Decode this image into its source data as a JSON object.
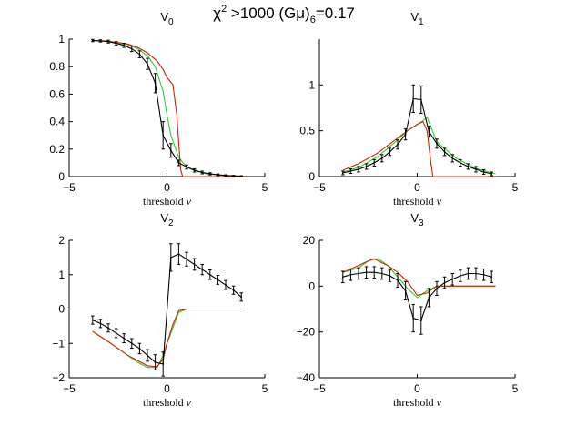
{
  "figure": {
    "title_chi": "χ",
    "title_chi_sup": "2",
    "title_mid": " >1000  (Gμ)",
    "title_mu_sub": "6",
    "title_end": "=0.17"
  },
  "colors": {
    "series_black": "#000000",
    "series_red": "#cc2200",
    "series_green": "#33cc33",
    "axis": "#000000",
    "background": "#ffffff"
  },
  "chart_data": [
    {
      "type": "line",
      "title_letter": "V",
      "title_sub": "0",
      "xlabel_text": "threshold ",
      "xlabel_symbol": "ν",
      "xlim": [
        -5,
        5
      ],
      "xticks": [
        -5,
        0,
        5
      ],
      "xtick_labels": [
        "−5",
        "0",
        "5"
      ],
      "ylim": [
        0,
        1
      ],
      "yticks": [
        0,
        0.2,
        0.4,
        0.6,
        0.8,
        1
      ],
      "ytick_labels": [
        "0",
        "0.2",
        "0.4",
        "0.6",
        "0.8",
        "1"
      ],
      "series": [
        {
          "name": "green",
          "color": "#33cc33",
          "x": [
            -3.8,
            -3,
            -2,
            -1.5,
            -1,
            -0.6,
            -0.2,
            0,
            0.2,
            0.6,
            1,
            2,
            3,
            4
          ],
          "y": [
            0.99,
            0.985,
            0.96,
            0.93,
            0.88,
            0.8,
            0.62,
            0.45,
            0.3,
            0.14,
            0.07,
            0.02,
            0.008,
            0.002
          ]
        },
        {
          "name": "red",
          "color": "#cc2200",
          "x": [
            -3.8,
            -3,
            -2,
            -1.5,
            -1,
            -0.5,
            -0.2,
            0,
            0.3,
            0.5,
            0.7,
            0.8,
            1,
            4
          ],
          "y": [
            0.99,
            0.985,
            0.965,
            0.94,
            0.9,
            0.84,
            0.78,
            0.72,
            0.67,
            0.45,
            0.05,
            0,
            0,
            0
          ]
        },
        {
          "name": "black",
          "color": "#000000",
          "x": [
            -3.8,
            -3.4,
            -3,
            -2.6,
            -2.2,
            -1.8,
            -1.4,
            -1,
            -0.6,
            -0.2,
            0.2,
            0.6,
            1,
            1.4,
            1.8,
            2.2,
            2.6,
            3,
            3.4,
            3.8
          ],
          "y": [
            0.99,
            0.987,
            0.982,
            0.97,
            0.955,
            0.93,
            0.89,
            0.82,
            0.68,
            0.3,
            0.19,
            0.1,
            0.07,
            0.045,
            0.03,
            0.02,
            0.013,
            0.008,
            0.005,
            0.003
          ],
          "err": [
            0.008,
            0.008,
            0.01,
            0.012,
            0.015,
            0.02,
            0.025,
            0.04,
            0.07,
            0.1,
            0.05,
            0.02,
            0.015,
            0.012,
            0.01,
            0.008,
            0.006,
            0.005,
            0.004,
            0.003
          ]
        }
      ]
    },
    {
      "type": "line",
      "title_letter": "V",
      "title_sub": "1",
      "xlabel_text": "threshold ",
      "xlabel_symbol": "ν",
      "xlim": [
        -5,
        5
      ],
      "xticks": [
        -5,
        0,
        5
      ],
      "xtick_labels": [
        "−5",
        "0",
        "5"
      ],
      "ylim": [
        0,
        1.5
      ],
      "yticks": [
        0,
        0.5,
        1
      ],
      "ytick_labels": [
        "0",
        "0.5",
        "1"
      ],
      "series": [
        {
          "name": "green",
          "color": "#33cc33",
          "x": [
            -3.8,
            -3,
            -2,
            -1,
            -0.5,
            0,
            0.3,
            0.5,
            1,
            2,
            3,
            4
          ],
          "y": [
            0.05,
            0.1,
            0.22,
            0.4,
            0.5,
            0.57,
            0.61,
            0.65,
            0.38,
            0.2,
            0.09,
            0.03
          ]
        },
        {
          "name": "red",
          "color": "#cc2200",
          "x": [
            -3.8,
            -3,
            -2,
            -1,
            -0.5,
            0,
            0.3,
            0.5,
            0.7,
            0.8,
            1,
            4
          ],
          "y": [
            0.07,
            0.14,
            0.26,
            0.42,
            0.5,
            0.57,
            0.6,
            0.5,
            0.15,
            0,
            0,
            0
          ]
        },
        {
          "name": "black",
          "color": "#000000",
          "x": [
            -3.8,
            -3.4,
            -3,
            -2.6,
            -2.2,
            -1.8,
            -1.4,
            -1,
            -0.6,
            -0.2,
            0.2,
            0.6,
            1,
            1.4,
            1.8,
            2.2,
            2.6,
            3,
            3.4,
            3.8
          ],
          "y": [
            0.04,
            0.06,
            0.08,
            0.11,
            0.15,
            0.2,
            0.27,
            0.35,
            0.46,
            0.85,
            0.84,
            0.49,
            0.36,
            0.27,
            0.2,
            0.15,
            0.11,
            0.08,
            0.05,
            0.03
          ],
          "err": [
            0.02,
            0.025,
            0.03,
            0.03,
            0.035,
            0.04,
            0.04,
            0.05,
            0.06,
            0.15,
            0.15,
            0.06,
            0.05,
            0.04,
            0.04,
            0.035,
            0.03,
            0.03,
            0.025,
            0.02
          ]
        }
      ]
    },
    {
      "type": "line",
      "title_letter": "V",
      "title_sub": "2",
      "xlabel_text": "threshold ",
      "xlabel_symbol": "ν",
      "xlim": [
        -5,
        5
      ],
      "xticks": [
        -5,
        0,
        5
      ],
      "xtick_labels": [
        "−5",
        "0",
        "5"
      ],
      "ylim": [
        -2,
        2
      ],
      "yticks": [
        -2,
        -1,
        0,
        1,
        2
      ],
      "ytick_labels": [
        "−2",
        "−1",
        "0",
        "1",
        "2"
      ],
      "series": [
        {
          "name": "green",
          "color": "#33cc33",
          "x": [
            -3.8,
            -3,
            -2,
            -1.5,
            -1,
            -0.5,
            -0.2,
            0,
            0.3,
            0.6,
            1,
            2,
            4
          ],
          "y": [
            -0.65,
            -0.95,
            -1.35,
            -1.55,
            -1.7,
            -1.7,
            -1.35,
            -1.0,
            -0.55,
            -0.1,
            0,
            0,
            0
          ]
        },
        {
          "name": "red",
          "color": "#cc2200",
          "x": [
            -3.8,
            -3,
            -2,
            -1.5,
            -1,
            -0.5,
            -0.2,
            0,
            0.3,
            0.6,
            1,
            2,
            4
          ],
          "y": [
            -0.65,
            -0.95,
            -1.35,
            -1.5,
            -1.65,
            -1.68,
            -1.45,
            -1.0,
            -0.45,
            -0.05,
            0,
            0,
            0
          ]
        },
        {
          "name": "black",
          "color": "#000000",
          "x": [
            -3.8,
            -3.4,
            -3,
            -2.6,
            -2.2,
            -1.8,
            -1.4,
            -1,
            -0.6,
            -0.2,
            0.2,
            0.6,
            1,
            1.4,
            1.8,
            2.2,
            2.6,
            3,
            3.4,
            3.8
          ],
          "y": [
            -0.32,
            -0.42,
            -0.55,
            -0.7,
            -0.85,
            -1.0,
            -1.15,
            -1.35,
            -1.55,
            -1.6,
            1.5,
            1.6,
            1.45,
            1.3,
            1.15,
            1.0,
            0.85,
            0.7,
            0.55,
            0.35
          ],
          "err": [
            0.12,
            0.12,
            0.12,
            0.13,
            0.13,
            0.14,
            0.15,
            0.17,
            0.22,
            0.35,
            0.4,
            0.3,
            0.2,
            0.17,
            0.15,
            0.14,
            0.13,
            0.13,
            0.12,
            0.12
          ]
        }
      ]
    },
    {
      "type": "line",
      "title_letter": "V",
      "title_sub": "3",
      "xlabel_text": "threshold ",
      "xlabel_symbol": "ν",
      "xlim": [
        -5,
        5
      ],
      "xticks": [
        -5,
        0,
        5
      ],
      "xtick_labels": [
        "−5",
        "0",
        "5"
      ],
      "ylim": [
        -40,
        20
      ],
      "yticks": [
        -40,
        -20,
        0,
        20
      ],
      "ytick_labels": [
        "−40",
        "−20",
        "0",
        "20"
      ],
      "series": [
        {
          "name": "green",
          "color": "#33cc33",
          "x": [
            -3.8,
            -3,
            -2.5,
            -2,
            -1.5,
            -1,
            -0.5,
            0,
            0.5,
            1,
            1.5,
            2,
            4
          ],
          "y": [
            6,
            8,
            11,
            12,
            9,
            4,
            -1,
            -5,
            -2,
            0,
            0,
            0,
            0
          ]
        },
        {
          "name": "red",
          "color": "#cc2200",
          "x": [
            -3.8,
            -3,
            -2.5,
            -2.2,
            -2,
            -1.5,
            -1,
            -0.5,
            0,
            0.5,
            1,
            1.5,
            2,
            4
          ],
          "y": [
            6,
            9,
            11,
            12,
            11,
            9,
            6,
            2,
            -4,
            -3,
            0,
            0,
            0,
            0
          ]
        },
        {
          "name": "black",
          "color": "#000000",
          "x": [
            -3.8,
            -3.4,
            -3,
            -2.6,
            -2.2,
            -1.8,
            -1.4,
            -1,
            -0.6,
            -0.2,
            0.2,
            0.6,
            1,
            1.4,
            1.8,
            2.2,
            2.6,
            3,
            3.4,
            3.8
          ],
          "y": [
            4,
            5,
            5.5,
            6,
            6,
            5.5,
            4.5,
            2.5,
            -2,
            -14,
            -15,
            -5,
            -1,
            1.5,
            3,
            4.5,
            5.5,
            5.5,
            5,
            4
          ],
          "err": [
            2.5,
            2.5,
            2.5,
            2.5,
            2.5,
            2.5,
            2.5,
            3,
            4,
            6,
            6,
            4,
            3,
            2.5,
            2.5,
            2.5,
            2.5,
            2.5,
            2.5,
            2.5
          ]
        }
      ]
    }
  ]
}
